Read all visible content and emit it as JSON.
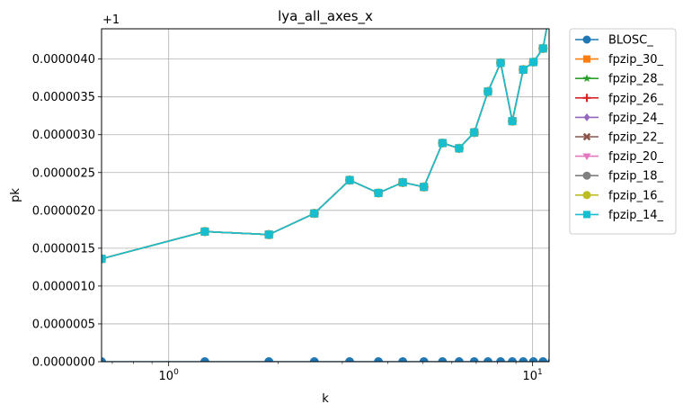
{
  "chart_data": {
    "type": "line",
    "title": "lya_all_axes_x",
    "xlabel": "k",
    "ylabel": "pk",
    "x_scale": "log",
    "xlim": [
      0.654,
      11.1
    ],
    "ylim": [
      0.0,
      4.4e-06
    ],
    "offset_label": "+1",
    "grid": true,
    "legend_placement": "outside-right",
    "x_ticks": [
      {
        "value": 1,
        "base": "10",
        "exp": "0"
      },
      {
        "value": 10,
        "base": "10",
        "exp": "1"
      }
    ],
    "y_ticks": [
      {
        "value": 0.0,
        "label": "0.0000000"
      },
      {
        "value": 5e-07,
        "label": "0.0000005"
      },
      {
        "value": 1e-06,
        "label": "0.0000010"
      },
      {
        "value": 1.5e-06,
        "label": "0.0000015"
      },
      {
        "value": 2e-06,
        "label": "0.0000020"
      },
      {
        "value": 2.5e-06,
        "label": "0.0000025"
      },
      {
        "value": 3e-06,
        "label": "0.0000030"
      },
      {
        "value": 3.5e-06,
        "label": "0.0000035"
      },
      {
        "value": 4e-06,
        "label": "0.0000040"
      }
    ],
    "x": [
      0.654,
      1.257,
      1.885,
      2.513,
      3.142,
      3.77,
      4.398,
      5.027,
      5.655,
      6.283,
      6.912,
      7.54,
      8.168,
      8.796,
      9.425,
      10.053,
      10.681,
      11.31
    ],
    "fp_values": [
      1.36e-06,
      1.72e-06,
      1.68e-06,
      1.96e-06,
      2.4e-06,
      2.23e-06,
      2.37e-06,
      2.31e-06,
      2.89e-06,
      2.82e-06,
      3.03e-06,
      3.57e-06,
      3.95e-06,
      3.18e-06,
      3.86e-06,
      3.96e-06,
      4.14e-06,
      4.8e-06
    ],
    "blosc_values": [
      0,
      0,
      0,
      0,
      0,
      0,
      0,
      0,
      0,
      0,
      0,
      0,
      0,
      0,
      0,
      0,
      0,
      0
    ],
    "series": [
      {
        "name": "BLOSC_",
        "color": "#1f77b4",
        "marker": "circle",
        "data": "blosc_values"
      },
      {
        "name": "fpzip_30_",
        "color": "#ff7f0e",
        "marker": "square",
        "data": "fp_values"
      },
      {
        "name": "fpzip_28_",
        "color": "#2ca02c",
        "marker": "star",
        "data": "fp_values"
      },
      {
        "name": "fpzip_26_",
        "color": "#d62728",
        "marker": "plus",
        "data": "fp_values"
      },
      {
        "name": "fpzip_24_",
        "color": "#9467bd",
        "marker": "diamond",
        "data": "fp_values"
      },
      {
        "name": "fpzip_22_",
        "color": "#8c564b",
        "marker": "x",
        "data": "fp_values"
      },
      {
        "name": "fpzip_20_",
        "color": "#e377c2",
        "marker": "triangle-down",
        "data": "fp_values"
      },
      {
        "name": "fpzip_18_",
        "color": "#7f7f7f",
        "marker": "circle",
        "data": "fp_values"
      },
      {
        "name": "fpzip_16_",
        "color": "#bcbd22",
        "marker": "circle",
        "data": "fp_values"
      },
      {
        "name": "fpzip_14_",
        "color": "#17becf",
        "marker": "square",
        "data": "fp_values"
      }
    ]
  }
}
